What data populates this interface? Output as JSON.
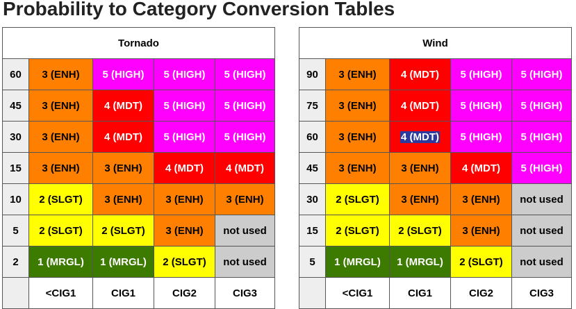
{
  "page_title": "Probability to Category Conversion Tables",
  "colors": {
    "MRGL": "#3d7a00",
    "SLGT": "#ffff00",
    "ENH": "#ff8000",
    "MDT": "#ff0000",
    "HIGH": "#ff00ff",
    "not_used": "#cccccc"
  },
  "tables": [
    {
      "title": "Tornado",
      "columns": [
        "<CIG1",
        "CIG1",
        "CIG2",
        "CIG3"
      ],
      "rows": [
        {
          "prob": "60",
          "cells": [
            {
              "text": "3 (ENH)",
              "cat": "ENH"
            },
            {
              "text": "5 (HIGH)",
              "cat": "HIGH"
            },
            {
              "text": "5 (HIGH)",
              "cat": "HIGH"
            },
            {
              "text": "5 (HIGH)",
              "cat": "HIGH"
            }
          ]
        },
        {
          "prob": "45",
          "cells": [
            {
              "text": "3 (ENH)",
              "cat": "ENH"
            },
            {
              "text": "4 (MDT)",
              "cat": "MDT"
            },
            {
              "text": "5 (HIGH)",
              "cat": "HIGH"
            },
            {
              "text": "5 (HIGH)",
              "cat": "HIGH"
            }
          ]
        },
        {
          "prob": "30",
          "cells": [
            {
              "text": "3 (ENH)",
              "cat": "ENH"
            },
            {
              "text": "4 (MDT)",
              "cat": "MDT"
            },
            {
              "text": "5 (HIGH)",
              "cat": "HIGH"
            },
            {
              "text": "5 (HIGH)",
              "cat": "HIGH"
            }
          ]
        },
        {
          "prob": "15",
          "cells": [
            {
              "text": "3 (ENH)",
              "cat": "ENH"
            },
            {
              "text": "3 (ENH)",
              "cat": "ENH"
            },
            {
              "text": "4 (MDT)",
              "cat": "MDT"
            },
            {
              "text": "4 (MDT)",
              "cat": "MDT"
            }
          ]
        },
        {
          "prob": "10",
          "cells": [
            {
              "text": "2 (SLGT)",
              "cat": "SLGT"
            },
            {
              "text": "3 (ENH)",
              "cat": "ENH"
            },
            {
              "text": "3 (ENH)",
              "cat": "ENH"
            },
            {
              "text": "3 (ENH)",
              "cat": "ENH"
            }
          ]
        },
        {
          "prob": "5",
          "cells": [
            {
              "text": "2 (SLGT)",
              "cat": "SLGT"
            },
            {
              "text": "2 (SLGT)",
              "cat": "SLGT"
            },
            {
              "text": "3 (ENH)",
              "cat": "ENH"
            },
            {
              "text": "not used",
              "cat": "not_used"
            }
          ]
        },
        {
          "prob": "2",
          "cells": [
            {
              "text": "1 (MRGL)",
              "cat": "MRGL"
            },
            {
              "text": "1 (MRGL)",
              "cat": "MRGL"
            },
            {
              "text": "2 (SLGT)",
              "cat": "SLGT"
            },
            {
              "text": "not used",
              "cat": "not_used"
            }
          ]
        }
      ]
    },
    {
      "title": "Wind",
      "columns": [
        "<CIG1",
        "CIG1",
        "CIG2",
        "CIG3"
      ],
      "rows": [
        {
          "prob": "90",
          "cells": [
            {
              "text": "3 (ENH)",
              "cat": "ENH"
            },
            {
              "text": "4 (MDT)",
              "cat": "MDT"
            },
            {
              "text": "5 (HIGH)",
              "cat": "HIGH"
            },
            {
              "text": "5 (HIGH)",
              "cat": "HIGH"
            }
          ]
        },
        {
          "prob": "75",
          "cells": [
            {
              "text": "3 (ENH)",
              "cat": "ENH"
            },
            {
              "text": "4 (MDT)",
              "cat": "MDT"
            },
            {
              "text": "5 (HIGH)",
              "cat": "HIGH"
            },
            {
              "text": "5 (HIGH)",
              "cat": "HIGH"
            }
          ]
        },
        {
          "prob": "60",
          "cells": [
            {
              "text": "3 (ENH)",
              "cat": "ENH"
            },
            {
              "text": "4 (MDT)",
              "cat": "MDT",
              "selected": true
            },
            {
              "text": "5 (HIGH)",
              "cat": "HIGH"
            },
            {
              "text": "5 (HIGH)",
              "cat": "HIGH"
            }
          ]
        },
        {
          "prob": "45",
          "cells": [
            {
              "text": "3 (ENH)",
              "cat": "ENH"
            },
            {
              "text": "3 (ENH)",
              "cat": "ENH"
            },
            {
              "text": "4 (MDT)",
              "cat": "MDT"
            },
            {
              "text": "5 (HIGH)",
              "cat": "HIGH"
            }
          ]
        },
        {
          "prob": "30",
          "cells": [
            {
              "text": "2 (SLGT)",
              "cat": "SLGT"
            },
            {
              "text": "3 (ENH)",
              "cat": "ENH"
            },
            {
              "text": "3 (ENH)",
              "cat": "ENH"
            },
            {
              "text": "not used",
              "cat": "not_used"
            }
          ]
        },
        {
          "prob": "15",
          "cells": [
            {
              "text": "2 (SLGT)",
              "cat": "SLGT"
            },
            {
              "text": "2 (SLGT)",
              "cat": "SLGT"
            },
            {
              "text": "3 (ENH)",
              "cat": "ENH"
            },
            {
              "text": "not used",
              "cat": "not_used"
            }
          ]
        },
        {
          "prob": "5",
          "cells": [
            {
              "text": "1 (MRGL)",
              "cat": "MRGL"
            },
            {
              "text": "1 (MRGL)",
              "cat": "MRGL"
            },
            {
              "text": "2 (SLGT)",
              "cat": "SLGT"
            },
            {
              "text": "not used",
              "cat": "not_used"
            }
          ]
        }
      ]
    }
  ]
}
